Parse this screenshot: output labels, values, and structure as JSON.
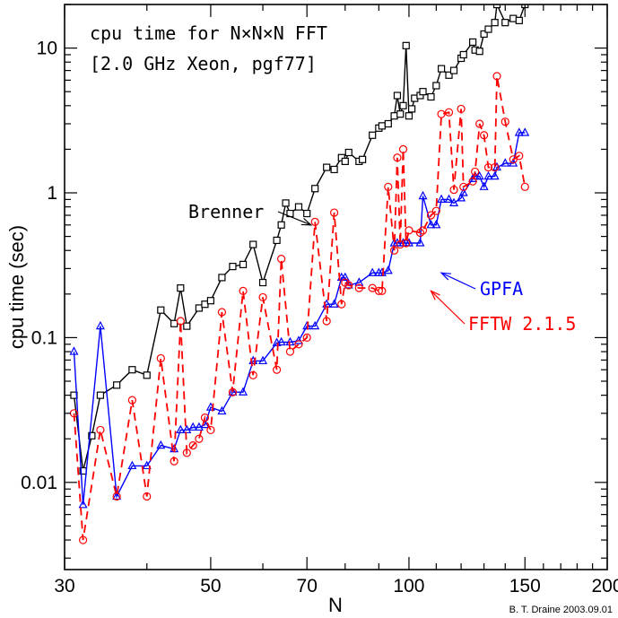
{
  "chart_data": {
    "type": "line",
    "xlabel": "N",
    "ylabel": "cpu time (sec)",
    "x_scale": "log",
    "y_scale": "log",
    "xlim": [
      30,
      200
    ],
    "ylim": [
      0.0025,
      20
    ],
    "x_ticks": [
      {
        "value": 30,
        "label": "30"
      },
      {
        "value": 50,
        "label": "50"
      },
      {
        "value": 70,
        "label": "70"
      },
      {
        "value": 100,
        "label": "100"
      },
      {
        "value": 150,
        "label": "150"
      },
      {
        "value": 200,
        "label": "200"
      }
    ],
    "y_ticks": [
      {
        "value": 0.01,
        "label": "0.01"
      },
      {
        "value": 0.1,
        "label": "0.1"
      },
      {
        "value": 1,
        "label": "1"
      },
      {
        "value": 10,
        "label": "10"
      }
    ],
    "annotation_lines": [
      "cpu time for N×N×N FFT",
      "[2.0 GHz Xeon, pgf77]"
    ],
    "credit": "B. T. Draine  2003.09.01",
    "grid": false,
    "series": [
      {
        "name": "Brenner",
        "color": "#000000",
        "dash": "solid",
        "marker": "square",
        "label_at": [
          71,
          0.6
        ],
        "points": [
          [
            31,
            0.04
          ],
          [
            32,
            0.012
          ],
          [
            33,
            0.021
          ],
          [
            34,
            0.04
          ],
          [
            36,
            0.047
          ],
          [
            38,
            0.06
          ],
          [
            40,
            0.055
          ],
          [
            42,
            0.155
          ],
          [
            44,
            0.125
          ],
          [
            45,
            0.22
          ],
          [
            46,
            0.12
          ],
          [
            48,
            0.16
          ],
          [
            49,
            0.17
          ],
          [
            50,
            0.18
          ],
          [
            52,
            0.26
          ],
          [
            54,
            0.31
          ],
          [
            56,
            0.32
          ],
          [
            58,
            0.44
          ],
          [
            60,
            0.24
          ],
          [
            63,
            0.47
          ],
          [
            64,
            0.6
          ],
          [
            65,
            0.85
          ],
          [
            66,
            0.72
          ],
          [
            68,
            0.8
          ],
          [
            70,
            0.72
          ],
          [
            72,
            1.07
          ],
          [
            75,
            1.5
          ],
          [
            77,
            1.45
          ],
          [
            79,
            1.75
          ],
          [
            80,
            1.65
          ],
          [
            81,
            1.9
          ],
          [
            84,
            1.65
          ],
          [
            85,
            1.7
          ],
          [
            88,
            2.5
          ],
          [
            90,
            2.8
          ],
          [
            91,
            2.9
          ],
          [
            93,
            3.0
          ],
          [
            95,
            3.4
          ],
          [
            96,
            4.7
          ],
          [
            97,
            3.5
          ],
          [
            98,
            4.0
          ],
          [
            99,
            10.4
          ],
          [
            100,
            3.4
          ],
          [
            101,
            3.8
          ],
          [
            102,
            4.5
          ],
          [
            104,
            4.7
          ],
          [
            105,
            5.0
          ],
          [
            108,
            4.6
          ],
          [
            110,
            5.5
          ],
          [
            112,
            7.2
          ],
          [
            115,
            6.5
          ],
          [
            117,
            7.0
          ],
          [
            120,
            8.5
          ],
          [
            121,
            9.0
          ],
          [
            125,
            11.0
          ],
          [
            126,
            9.7
          ],
          [
            128,
            9.5
          ],
          [
            130,
            12.5
          ],
          [
            132,
            13.5
          ],
          [
            135,
            15.0
          ],
          [
            136,
            20.0
          ],
          [
            140,
            15.0
          ],
          [
            144,
            16.0
          ],
          [
            147,
            15.5
          ],
          [
            150,
            20.0
          ]
        ]
      },
      {
        "name": "GPFA",
        "color": "#0000ff",
        "dash": "solid",
        "marker": "triangle",
        "label_at": [
          112,
          0.28
        ],
        "points": [
          [
            31,
            0.08
          ],
          [
            32,
            0.007
          ],
          [
            34,
            0.12
          ],
          [
            36,
            0.008
          ],
          [
            38,
            0.013
          ],
          [
            40,
            0.013
          ],
          [
            42,
            0.018
          ],
          [
            44,
            0.017
          ],
          [
            45,
            0.023
          ],
          [
            46,
            0.023
          ],
          [
            47,
            0.024
          ],
          [
            48,
            0.024
          ],
          [
            49,
            0.025
          ],
          [
            50,
            0.033
          ],
          [
            52,
            0.031
          ],
          [
            54,
            0.042
          ],
          [
            56,
            0.042
          ],
          [
            58,
            0.069
          ],
          [
            60,
            0.069
          ],
          [
            63,
            0.092
          ],
          [
            64,
            0.093
          ],
          [
            66,
            0.093
          ],
          [
            68,
            0.095
          ],
          [
            70,
            0.12
          ],
          [
            72,
            0.12
          ],
          [
            75,
            0.17
          ],
          [
            77,
            0.17
          ],
          [
            79,
            0.26
          ],
          [
            80,
            0.26
          ],
          [
            81,
            0.23
          ],
          [
            84,
            0.24
          ],
          [
            88,
            0.28
          ],
          [
            90,
            0.28
          ],
          [
            91,
            0.28
          ],
          [
            93,
            0.29
          ],
          [
            95,
            0.45
          ],
          [
            96,
            0.45
          ],
          [
            98,
            0.45
          ],
          [
            99,
            0.45
          ],
          [
            100,
            0.45
          ],
          [
            104,
            0.45
          ],
          [
            105,
            0.95
          ],
          [
            108,
            0.6
          ],
          [
            110,
            0.6
          ],
          [
            112,
            0.9
          ],
          [
            115,
            0.9
          ],
          [
            117,
            0.85
          ],
          [
            120,
            0.92
          ],
          [
            121,
            1.0
          ],
          [
            125,
            1.25
          ],
          [
            126,
            1.3
          ],
          [
            128,
            1.3
          ],
          [
            130,
            1.1
          ],
          [
            132,
            1.3
          ],
          [
            135,
            1.3
          ],
          [
            136,
            1.5
          ],
          [
            140,
            1.6
          ],
          [
            144,
            1.6
          ],
          [
            147,
            2.6
          ],
          [
            150,
            2.6
          ]
        ]
      },
      {
        "name": "FFTW 2.1.5",
        "color": "#ff0000",
        "dash": "dashed",
        "marker": "circle",
        "label_at": [
          108,
          0.21
        ],
        "points": [
          [
            31,
            0.03
          ],
          [
            32,
            0.004
          ],
          [
            34,
            0.023
          ],
          [
            36,
            0.008
          ],
          [
            38,
            0.037
          ],
          [
            40,
            0.008
          ],
          [
            42,
            0.072
          ],
          [
            44,
            0.014
          ],
          [
            45,
            0.13
          ],
          [
            46,
            0.016
          ],
          [
            47,
            0.018
          ],
          [
            48,
            0.02
          ],
          [
            49,
            0.028
          ],
          [
            50,
            0.023
          ],
          [
            52,
            0.15
          ],
          [
            54,
            0.042
          ],
          [
            56,
            0.21
          ],
          [
            58,
            0.055
          ],
          [
            60,
            0.19
          ],
          [
            63,
            0.06
          ],
          [
            64,
            0.35
          ],
          [
            66,
            0.08
          ],
          [
            68,
            0.09
          ],
          [
            70,
            0.1
          ],
          [
            72,
            0.63
          ],
          [
            75,
            0.13
          ],
          [
            77,
            0.73
          ],
          [
            79,
            0.17
          ],
          [
            80,
            0.24
          ],
          [
            81,
            0.23
          ],
          [
            84,
            0.22
          ],
          [
            88,
            0.22
          ],
          [
            90,
            0.21
          ],
          [
            91,
            0.21
          ],
          [
            93,
            1.1
          ],
          [
            95,
            0.4
          ],
          [
            96,
            1.75
          ],
          [
            97,
            0.44
          ],
          [
            98,
            2.0
          ],
          [
            99,
            0.45
          ],
          [
            100,
            0.55
          ],
          [
            104,
            0.53
          ],
          [
            105,
            0.55
          ],
          [
            108,
            0.7
          ],
          [
            110,
            0.75
          ],
          [
            112,
            3.5
          ],
          [
            115,
            3.6
          ],
          [
            117,
            1.05
          ],
          [
            120,
            3.8
          ],
          [
            121,
            1.1
          ],
          [
            125,
            1.2
          ],
          [
            126,
            1.4
          ],
          [
            128,
            3.0
          ],
          [
            130,
            2.5
          ],
          [
            132,
            1.5
          ],
          [
            135,
            1.5
          ],
          [
            136,
            6.4
          ],
          [
            140,
            3.1
          ],
          [
            144,
            1.7
          ],
          [
            147,
            1.8
          ],
          [
            150,
            1.1
          ]
        ]
      }
    ]
  }
}
